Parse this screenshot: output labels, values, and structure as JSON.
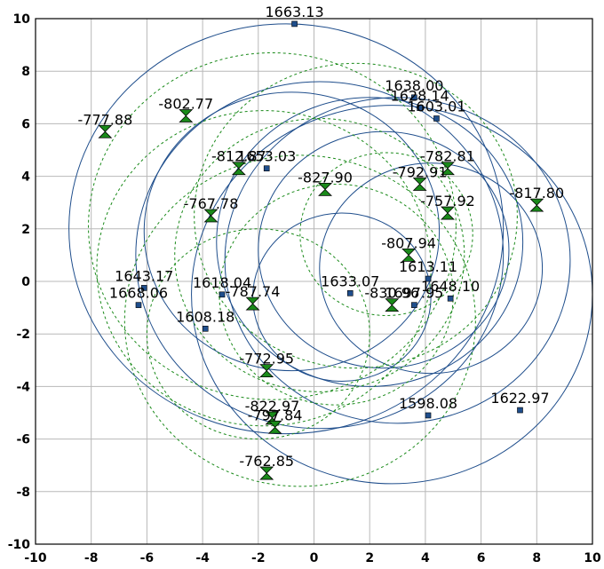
{
  "chart_data": {
    "type": "scatter",
    "title": "",
    "xlabel": "",
    "ylabel": "",
    "xlim": [
      -10,
      10
    ],
    "ylim": [
      -10,
      10
    ],
    "grid": true,
    "x_ticks": [
      "-10",
      "-8",
      "-6",
      "-4",
      "-2",
      "0",
      "2",
      "4",
      "6",
      "8",
      "10"
    ],
    "y_ticks": [
      "10",
      "8",
      "6",
      "4",
      "2",
      "0",
      "-2",
      "-4",
      "-6",
      "-8",
      "-10"
    ],
    "colors": {
      "square_series": "#1f4e8c",
      "hourglass_series": "#1a8a1a",
      "hourglass_fill": "#1a8a1a",
      "grid": "#b8b8b8"
    },
    "series": [
      {
        "marker": "square",
        "points": [
          {
            "x": -0.7,
            "y": 9.8,
            "label": "1663.13"
          },
          {
            "x": 3.6,
            "y": 7.0,
            "label": "1638.00"
          },
          {
            "x": 3.8,
            "y": 6.6,
            "label": "1628.14"
          },
          {
            "x": 4.4,
            "y": 6.2,
            "label": "1603.01"
          },
          {
            "x": -1.7,
            "y": 4.3,
            "label": "1653.03"
          },
          {
            "x": 4.1,
            "y": 0.1,
            "label": "1613.11"
          },
          {
            "x": 1.3,
            "y": -0.45,
            "label": "1633.07"
          },
          {
            "x": 3.6,
            "y": -0.9,
            "label": "1697.95"
          },
          {
            "x": 4.9,
            "y": -0.65,
            "label": "1648.10"
          },
          {
            "x": -6.1,
            "y": -0.25,
            "label": "1643.17"
          },
          {
            "x": -6.3,
            "y": -0.9,
            "label": "1668.06"
          },
          {
            "x": -3.3,
            "y": -0.5,
            "label": "1618.04"
          },
          {
            "x": -3.9,
            "y": -1.8,
            "label": "1608.18"
          },
          {
            "x": 4.1,
            "y": -5.1,
            "label": "1598.08"
          },
          {
            "x": 7.4,
            "y": -4.9,
            "label": "1622.97"
          }
        ]
      },
      {
        "marker": "hourglass",
        "points": [
          {
            "x": -7.5,
            "y": 5.7,
            "label": "-777.88"
          },
          {
            "x": -4.6,
            "y": 6.3,
            "label": "-802.77"
          },
          {
            "x": -2.7,
            "y": 4.3,
            "label": "-812.87"
          },
          {
            "x": 0.4,
            "y": 3.5,
            "label": "-827.90"
          },
          {
            "x": -3.7,
            "y": 2.5,
            "label": "-767.78"
          },
          {
            "x": 3.8,
            "y": 3.7,
            "label": "-792.91"
          },
          {
            "x": 4.8,
            "y": 4.3,
            "label": "-782.81"
          },
          {
            "x": 4.8,
            "y": 2.6,
            "label": "-757.92"
          },
          {
            "x": 8.0,
            "y": 2.9,
            "label": "-817.80"
          },
          {
            "x": 3.4,
            "y": 1.0,
            "label": "-807.94"
          },
          {
            "x": 2.8,
            "y": -0.9,
            "label": "-830.96"
          },
          {
            "x": -2.2,
            "y": -0.85,
            "label": "-787.74"
          },
          {
            "x": -1.7,
            "y": -3.4,
            "label": "-772.95"
          },
          {
            "x": -1.5,
            "y": -5.2,
            "label": "-822.97"
          },
          {
            "x": -1.4,
            "y": -5.55,
            "label": "-797.84"
          },
          {
            "x": -1.7,
            "y": -7.3,
            "label": "-762.85"
          }
        ]
      }
    ],
    "curves": [
      {
        "style": "solid",
        "cx": -1.0,
        "cy": 2.0,
        "r": 7.8
      },
      {
        "style": "solid",
        "cx": 0.2,
        "cy": 1.0,
        "r": 6.6
      },
      {
        "style": "solid",
        "cx": -0.8,
        "cy": 1.9,
        "r": 5.3
      },
      {
        "style": "solid",
        "cx": 2.0,
        "cy": 1.5,
        "r": 5.5
      },
      {
        "style": "solid",
        "cx": 3.0,
        "cy": 0.8,
        "r": 6.2
      },
      {
        "style": "solid",
        "cx": 2.5,
        "cy": 1.2,
        "r": 4.5
      },
      {
        "style": "solid",
        "cx": 4.2,
        "cy": 0.5,
        "r": 4.0
      },
      {
        "style": "solid",
        "cx": 2.8,
        "cy": -0.5,
        "r": 7.2
      },
      {
        "style": "solid",
        "cx": 1.0,
        "cy": -0.6,
        "r": 3.2
      },
      {
        "style": "dashed",
        "cx": -1.5,
        "cy": 2.1,
        "r": 6.6
      },
      {
        "style": "dashed",
        "cx": -1.8,
        "cy": 0.5,
        "r": 6.0
      },
      {
        "style": "dashed",
        "cx": 0.2,
        "cy": 1.0,
        "r": 5.2
      },
      {
        "style": "dashed",
        "cx": -0.5,
        "cy": -1.5,
        "r": 6.3
      },
      {
        "style": "dashed",
        "cx": 0.8,
        "cy": -0.5,
        "r": 4.2
      },
      {
        "style": "dashed",
        "cx": 2.6,
        "cy": 1.8,
        "r": 3.1
      },
      {
        "style": "dashed",
        "cx": -2.0,
        "cy": -2.0,
        "r": 4.0
      },
      {
        "style": "dashed",
        "cx": 1.5,
        "cy": 2.5,
        "r": 5.8
      }
    ]
  }
}
